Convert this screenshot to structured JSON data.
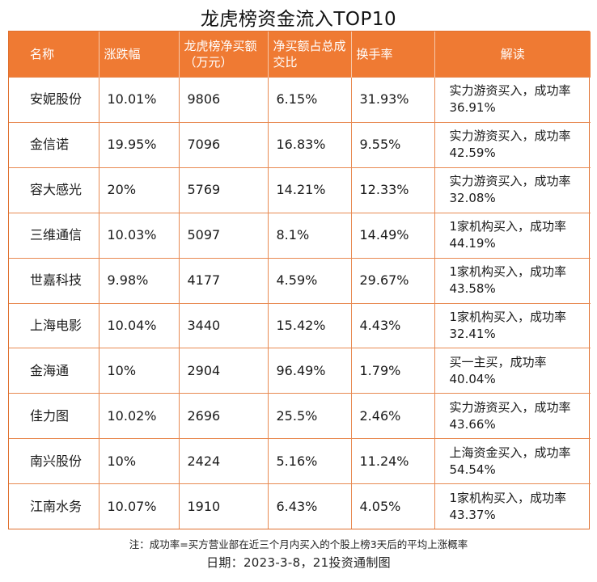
{
  "title": "龙虎榜资金流入TOP10",
  "table": {
    "headers": [
      "名称",
      "涨跌幅",
      "龙虎榜净买额（万元）",
      "净买额占总成交比",
      "换手率",
      "解读"
    ],
    "rows": [
      [
        "安妮股份",
        "10.01%",
        "9806",
        "6.15%",
        "31.93%",
        "实力游资买入，成功率36.91%"
      ],
      [
        "金信诺",
        "19.95%",
        "7096",
        "16.83%",
        "9.55%",
        "实力游资买入，成功率42.59%"
      ],
      [
        "容大感光",
        "20%",
        "5769",
        "14.21%",
        "12.33%",
        "实力游资买入，成功率32.08%"
      ],
      [
        "三维通信",
        "10.03%",
        "5097",
        "8.1%",
        "14.49%",
        "1家机构买入，成功率44.19%"
      ],
      [
        "世嘉科技",
        "9.98%",
        "4177",
        "4.59%",
        "29.67%",
        "1家机构买入，成功率43.58%"
      ],
      [
        "上海电影",
        "10.04%",
        "3440",
        "15.42%",
        "4.43%",
        "1家机构买入，成功率32.41%"
      ],
      [
        "金海通",
        "10%",
        "2904",
        "96.49%",
        "1.79%",
        "买一主买，成功率40.04%"
      ],
      [
        "佳力图",
        "10.02%",
        "2696",
        "25.5%",
        "2.46%",
        "实力游资买入，成功率43.66%"
      ],
      [
        "南兴股份",
        "10%",
        "2424",
        "5.16%",
        "11.24%",
        "上海资金买入，成功率54.54%"
      ],
      [
        "江南水务",
        "10.07%",
        "1910",
        "6.43%",
        "4.05%",
        "1家机构买入，成功率43.37%"
      ]
    ]
  },
  "note": "注：成功率=买方营业部在近三个月内买入的个股上榜3天后的平均上涨概率",
  "footer": "日期：2023-3-8，21投资通制图",
  "colors": {
    "header_bg": "#ef7a33",
    "border": "#e88a52"
  }
}
